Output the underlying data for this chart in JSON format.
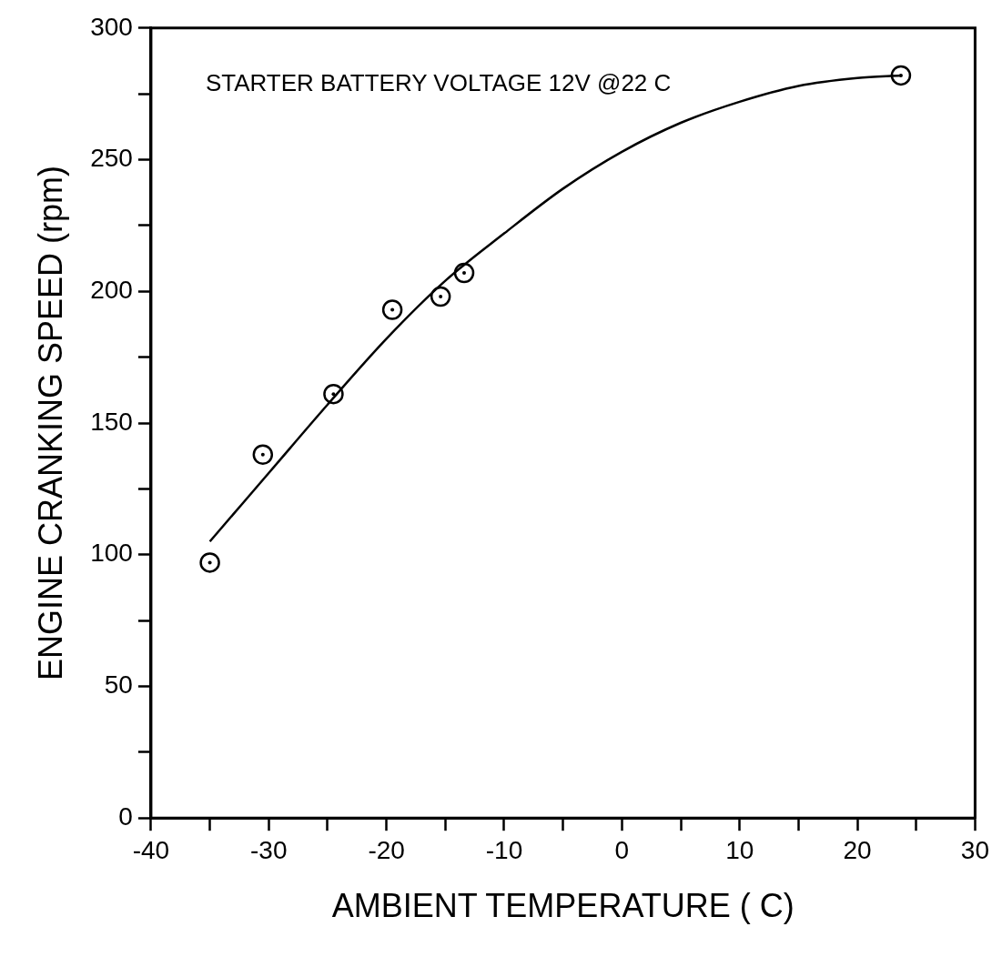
{
  "chart_data": {
    "type": "scatter",
    "xlabel": "AMBIENT TEMPERATURE ( C)",
    "ylabel": "ENGINE CRANKING SPEED (rpm)",
    "annotations": [
      "STARTER BATTERY VOLTAGE 12V @22 C"
    ],
    "series": [
      {
        "marker": "circle",
        "color": "#000000",
        "x": [
          -35,
          -30.5,
          -24.5,
          -19.5,
          -15.4,
          -13.4,
          23.7
        ],
        "values": [
          97,
          138,
          161,
          193,
          198,
          207,
          282
        ]
      },
      {
        "type": "line",
        "marker": "none",
        "line_style": "solid",
        "color": "#000000",
        "x": [
          -35,
          -30,
          -25,
          -20,
          -15,
          -10,
          -5,
          0,
          5,
          10,
          15,
          20,
          23.7
        ],
        "values": [
          105,
          131,
          157,
          182,
          204,
          222,
          239,
          253,
          264,
          272,
          278,
          281,
          282
        ]
      }
    ],
    "xlim": [
      -40,
      30
    ],
    "xticks": [
      -40,
      {
        "value": -35,
        "label": null
      },
      -30,
      {
        "value": -25,
        "label": null
      },
      -20,
      {
        "value": -15,
        "label": null
      },
      -10,
      {
        "value": -5,
        "label": null
      },
      0,
      {
        "value": 5,
        "label": null
      },
      10,
      {
        "value": 15,
        "label": null
      },
      20,
      {
        "value": 25,
        "label": null
      },
      30
    ],
    "ylim": [
      0,
      300
    ],
    "yticks": [
      0,
      {
        "value": 25,
        "label": null
      },
      50,
      {
        "value": 75,
        "label": null
      },
      100,
      {
        "value": 125,
        "label": null
      },
      150,
      {
        "value": 175,
        "label": null
      },
      200,
      {
        "value": 225,
        "label": null
      },
      250,
      {
        "value": 275,
        "label": null
      },
      300
    ],
    "grid": false,
    "legend": false
  }
}
